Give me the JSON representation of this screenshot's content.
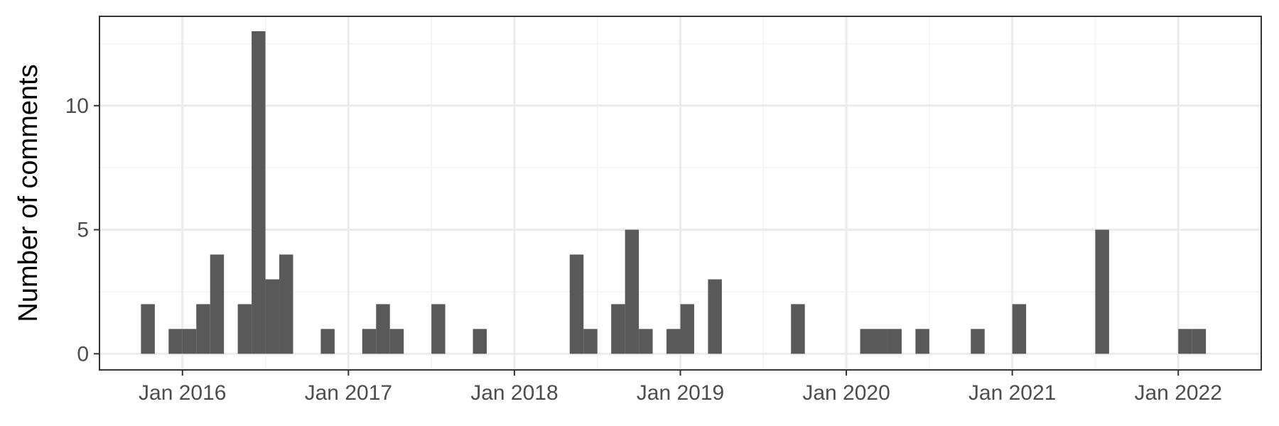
{
  "chart_data": {
    "type": "bar",
    "xlabel": "",
    "ylabel": "Number of comments",
    "x_axis_type": "date",
    "xlim": [
      "2015-07-01",
      "2022-07-01"
    ],
    "ylim": [
      -0.65,
      13.6
    ],
    "x_ticks": [
      {
        "date": "2016-01-01",
        "label": "Jan 2016"
      },
      {
        "date": "2017-01-01",
        "label": "Jan 2017"
      },
      {
        "date": "2018-01-01",
        "label": "Jan 2018"
      },
      {
        "date": "2019-01-01",
        "label": "Jan 2019"
      },
      {
        "date": "2020-01-01",
        "label": "Jan 2020"
      },
      {
        "date": "2021-01-01",
        "label": "Jan 2021"
      },
      {
        "date": "2022-01-01",
        "label": "Jan 2022"
      }
    ],
    "y_ticks": [
      0,
      5,
      10
    ],
    "bin_width": "1 month",
    "grid": true,
    "colors": {
      "bar": "#595959",
      "panel_border": "#333333",
      "grid_major": "#ebebeb",
      "grid_minor": "#f3f3f3",
      "tick_mark": "#333333",
      "tick_label": "#4d4d4d"
    },
    "bins": [
      {
        "start": "2015-10-01",
        "count": 2
      },
      {
        "start": "2015-12-01",
        "count": 1
      },
      {
        "start": "2016-01-01",
        "count": 1
      },
      {
        "start": "2016-02-01",
        "count": 2
      },
      {
        "start": "2016-03-01",
        "count": 4
      },
      {
        "start": "2016-05-01",
        "count": 2
      },
      {
        "start": "2016-06-01",
        "count": 13
      },
      {
        "start": "2016-07-01",
        "count": 3
      },
      {
        "start": "2016-08-01",
        "count": 4
      },
      {
        "start": "2016-11-01",
        "count": 1
      },
      {
        "start": "2017-02-01",
        "count": 1
      },
      {
        "start": "2017-03-01",
        "count": 2
      },
      {
        "start": "2017-04-01",
        "count": 1
      },
      {
        "start": "2017-07-01",
        "count": 2
      },
      {
        "start": "2017-10-01",
        "count": 1
      },
      {
        "start": "2018-05-01",
        "count": 4
      },
      {
        "start": "2018-06-01",
        "count": 1
      },
      {
        "start": "2018-08-01",
        "count": 2
      },
      {
        "start": "2018-09-01",
        "count": 5
      },
      {
        "start": "2018-10-01",
        "count": 1
      },
      {
        "start": "2018-12-01",
        "count": 1
      },
      {
        "start": "2019-01-01",
        "count": 2
      },
      {
        "start": "2019-03-01",
        "count": 3
      },
      {
        "start": "2019-09-01",
        "count": 2
      },
      {
        "start": "2020-02-01",
        "count": 1
      },
      {
        "start": "2020-03-01",
        "count": 1
      },
      {
        "start": "2020-04-01",
        "count": 1
      },
      {
        "start": "2020-06-01",
        "count": 1
      },
      {
        "start": "2020-10-01",
        "count": 1
      },
      {
        "start": "2021-01-01",
        "count": 2
      },
      {
        "start": "2021-07-01",
        "count": 5
      },
      {
        "start": "2022-01-01",
        "count": 1
      },
      {
        "start": "2022-02-01",
        "count": 1
      }
    ]
  }
}
